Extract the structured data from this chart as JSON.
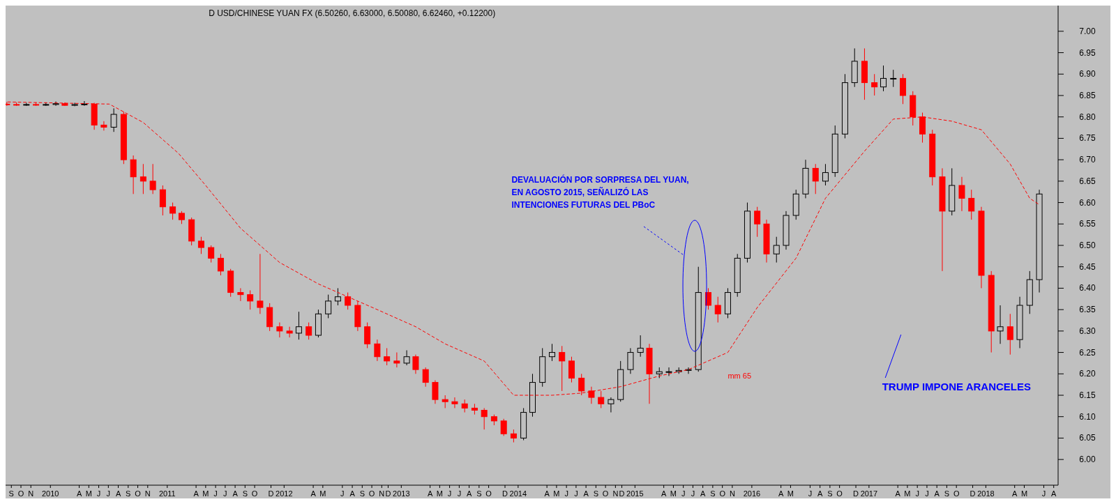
{
  "chart_data": {
    "type": "candlestick",
    "title": "D USD/CHINESE YUAN FX (6.50260, 6.63000, 6.50080, 6.62460, +0.12200)",
    "x": [
      "2009-09",
      "2009-10",
      "2009-11",
      "2009-12",
      "2010-01",
      "2010-02",
      "2010-03",
      "2010-04",
      "2010-05",
      "2010-06",
      "2010-07",
      "2010-08",
      "2010-09",
      "2010-10",
      "2010-11",
      "2010-12",
      "2011-01",
      "2011-02",
      "2011-03",
      "2011-04",
      "2011-05",
      "2011-06",
      "2011-07",
      "2011-08",
      "2011-09",
      "2011-10",
      "2011-11",
      "2011-12",
      "2012-01",
      "2012-02",
      "2012-03",
      "2012-04",
      "2012-05",
      "2012-06",
      "2012-07",
      "2012-08",
      "2012-09",
      "2012-10",
      "2012-11",
      "2012-12",
      "2013-01",
      "2013-02",
      "2013-03",
      "2013-04",
      "2013-05",
      "2013-06",
      "2013-07",
      "2013-08",
      "2013-09",
      "2013-10",
      "2013-11",
      "2013-12",
      "2014-01",
      "2014-02",
      "2014-03",
      "2014-04",
      "2014-05",
      "2014-06",
      "2014-07",
      "2014-08",
      "2014-09",
      "2014-10",
      "2014-11",
      "2014-12",
      "2015-01",
      "2015-02",
      "2015-03",
      "2015-04",
      "2015-05",
      "2015-06",
      "2015-07",
      "2015-08",
      "2015-09",
      "2015-10",
      "2015-11",
      "2015-12",
      "2016-01",
      "2016-02",
      "2016-03",
      "2016-04",
      "2016-05",
      "2016-06",
      "2016-07",
      "2016-08",
      "2016-09",
      "2016-10",
      "2016-11",
      "2016-12",
      "2017-01",
      "2017-02",
      "2017-03",
      "2017-04",
      "2017-05",
      "2017-06",
      "2017-07",
      "2017-08",
      "2017-09",
      "2017-10",
      "2017-11",
      "2017-12",
      "2018-01",
      "2018-02",
      "2018-03",
      "2018-04",
      "2018-05",
      "2018-06",
      "2018-07"
    ],
    "ohlc": [
      [
        6.83,
        6.835,
        6.826,
        6.829
      ],
      [
        6.829,
        6.834,
        6.826,
        6.828
      ],
      [
        6.828,
        6.833,
        6.826,
        6.829
      ],
      [
        6.829,
        6.834,
        6.826,
        6.828
      ],
      [
        6.828,
        6.834,
        6.826,
        6.829
      ],
      [
        6.829,
        6.836,
        6.826,
        6.831
      ],
      [
        6.831,
        6.834,
        6.826,
        6.827
      ],
      [
        6.827,
        6.833,
        6.825,
        6.829
      ],
      [
        6.829,
        6.837,
        6.826,
        6.83
      ],
      [
        6.83,
        6.833,
        6.77,
        6.781
      ],
      [
        6.781,
        6.79,
        6.768,
        6.776
      ],
      [
        6.776,
        6.82,
        6.765,
        6.806
      ],
      [
        6.806,
        6.812,
        6.69,
        6.7
      ],
      [
        6.7,
        6.71,
        6.62,
        6.66
      ],
      [
        6.66,
        6.69,
        6.62,
        6.65
      ],
      [
        6.65,
        6.69,
        6.62,
        6.63
      ],
      [
        6.63,
        6.64,
        6.57,
        6.59
      ],
      [
        6.59,
        6.6,
        6.56,
        6.575
      ],
      [
        6.575,
        6.58,
        6.55,
        6.56
      ],
      [
        6.56,
        6.565,
        6.5,
        6.51
      ],
      [
        6.51,
        6.52,
        6.48,
        6.495
      ],
      [
        6.495,
        6.5,
        6.46,
        6.47
      ],
      [
        6.47,
        6.48,
        6.43,
        6.44
      ],
      [
        6.44,
        6.445,
        6.38,
        6.39
      ],
      [
        6.39,
        6.4,
        6.37,
        6.385
      ],
      [
        6.385,
        6.395,
        6.35,
        6.37
      ],
      [
        6.37,
        6.48,
        6.34,
        6.355
      ],
      [
        6.355,
        6.365,
        6.3,
        6.31
      ],
      [
        6.31,
        6.32,
        6.285,
        6.3
      ],
      [
        6.3,
        6.31,
        6.285,
        6.295
      ],
      [
        6.295,
        6.345,
        6.28,
        6.31
      ],
      [
        6.31,
        6.32,
        6.28,
        6.29
      ],
      [
        6.29,
        6.35,
        6.285,
        6.34
      ],
      [
        6.34,
        6.385,
        6.33,
        6.37
      ],
      [
        6.37,
        6.4,
        6.36,
        6.38
      ],
      [
        6.38,
        6.39,
        6.35,
        6.36
      ],
      [
        6.36,
        6.37,
        6.3,
        6.31
      ],
      [
        6.31,
        6.32,
        6.26,
        6.27
      ],
      [
        6.27,
        6.28,
        6.23,
        6.24
      ],
      [
        6.24,
        6.26,
        6.22,
        6.23
      ],
      [
        6.23,
        6.25,
        6.215,
        6.225
      ],
      [
        6.225,
        6.255,
        6.22,
        6.24
      ],
      [
        6.24,
        6.245,
        6.2,
        6.21
      ],
      [
        6.21,
        6.215,
        6.17,
        6.18
      ],
      [
        6.18,
        6.185,
        6.13,
        6.14
      ],
      [
        6.14,
        6.15,
        6.12,
        6.135
      ],
      [
        6.135,
        6.145,
        6.12,
        6.13
      ],
      [
        6.13,
        6.14,
        6.11,
        6.12
      ],
      [
        6.12,
        6.13,
        6.105,
        6.115
      ],
      [
        6.115,
        6.12,
        6.07,
        6.1
      ],
      [
        6.1,
        6.105,
        6.08,
        6.09
      ],
      [
        6.09,
        6.095,
        6.055,
        6.06
      ],
      [
        6.06,
        6.07,
        6.04,
        6.05
      ],
      [
        6.05,
        6.12,
        6.045,
        6.11
      ],
      [
        6.11,
        6.2,
        6.1,
        6.18
      ],
      [
        6.18,
        6.26,
        6.17,
        6.24
      ],
      [
        6.24,
        6.27,
        6.23,
        6.25
      ],
      [
        6.25,
        6.265,
        6.16,
        6.23
      ],
      [
        6.23,
        6.24,
        6.18,
        6.19
      ],
      [
        6.19,
        6.2,
        6.15,
        6.16
      ],
      [
        6.16,
        6.17,
        6.13,
        6.145
      ],
      [
        6.145,
        6.16,
        6.12,
        6.13
      ],
      [
        6.13,
        6.145,
        6.11,
        6.14
      ],
      [
        6.14,
        6.23,
        6.135,
        6.21
      ],
      [
        6.21,
        6.26,
        6.2,
        6.25
      ],
      [
        6.25,
        6.29,
        6.24,
        6.26
      ],
      [
        6.26,
        6.27,
        6.13,
        6.2
      ],
      [
        6.2,
        6.215,
        6.19,
        6.205
      ],
      [
        6.205,
        6.215,
        6.195,
        6.205
      ],
      [
        6.205,
        6.215,
        6.2,
        6.208
      ],
      [
        6.208,
        6.215,
        6.2,
        6.21
      ],
      [
        6.21,
        6.45,
        6.205,
        6.39
      ],
      [
        6.39,
        6.4,
        6.35,
        6.36
      ],
      [
        6.36,
        6.38,
        6.32,
        6.34
      ],
      [
        6.34,
        6.4,
        6.33,
        6.39
      ],
      [
        6.39,
        6.48,
        6.38,
        6.47
      ],
      [
        6.47,
        6.6,
        6.46,
        6.58
      ],
      [
        6.58,
        6.59,
        6.52,
        6.55
      ],
      [
        6.55,
        6.56,
        6.46,
        6.48
      ],
      [
        6.48,
        6.52,
        6.46,
        6.5
      ],
      [
        6.5,
        6.58,
        6.49,
        6.57
      ],
      [
        6.57,
        6.63,
        6.56,
        6.62
      ],
      [
        6.62,
        6.7,
        6.61,
        6.68
      ],
      [
        6.68,
        6.69,
        6.62,
        6.65
      ],
      [
        6.65,
        6.69,
        6.64,
        6.67
      ],
      [
        6.67,
        6.78,
        6.66,
        6.76
      ],
      [
        6.76,
        6.9,
        6.75,
        6.88
      ],
      [
        6.88,
        6.96,
        6.87,
        6.93
      ],
      [
        6.93,
        6.96,
        6.84,
        6.88
      ],
      [
        6.88,
        6.9,
        6.85,
        6.87
      ],
      [
        6.87,
        6.92,
        6.86,
        6.89
      ],
      [
        6.89,
        6.91,
        6.87,
        6.89
      ],
      [
        6.89,
        6.9,
        6.83,
        6.85
      ],
      [
        6.85,
        6.86,
        6.78,
        6.8
      ],
      [
        6.8,
        6.81,
        6.74,
        6.76
      ],
      [
        6.76,
        6.77,
        6.64,
        6.66
      ],
      [
        6.66,
        6.68,
        6.44,
        6.58
      ],
      [
        6.58,
        6.68,
        6.57,
        6.64
      ],
      [
        6.64,
        6.66,
        6.58,
        6.61
      ],
      [
        6.61,
        6.63,
        6.56,
        6.58
      ],
      [
        6.58,
        6.59,
        6.4,
        6.43
      ],
      [
        6.43,
        6.44,
        6.25,
        6.3
      ],
      [
        6.3,
        6.36,
        6.27,
        6.31
      ],
      [
        6.31,
        6.34,
        6.245,
        6.28
      ],
      [
        6.28,
        6.38,
        6.26,
        6.36
      ],
      [
        6.36,
        6.44,
        6.34,
        6.42
      ],
      [
        6.42,
        6.63,
        6.39,
        6.62
      ]
    ],
    "series": [
      {
        "type": "line",
        "color": "#ff0000",
        "line_style": "dashed",
        "x": [
          "2009-09-01",
          "2010-07-18",
          "2010-11-01",
          "2011-02-19",
          "2011-05-15",
          "2011-09-01",
          "2012-01-01",
          "2012-05-01",
          "2012-08-01",
          "2012-11-01",
          "2013-03-01",
          "2013-06-01",
          "2013-10-01",
          "2014-01-01",
          "2014-05-01",
          "2014-08-01",
          "2014-12-01",
          "2015-04-01",
          "2015-07-01",
          "2015-11-01",
          "2016-02-01",
          "2016-06-01",
          "2016-09-01",
          "2017-01-01",
          "2017-04-01",
          "2017-07-01",
          "2017-10-01",
          "2018-01-01",
          "2018-04-01",
          "2018-06-01",
          "2018-07-01"
        ],
        "values": [
          6.835,
          6.83,
          6.787,
          6.715,
          6.64,
          6.54,
          6.46,
          6.41,
          6.38,
          6.35,
          6.31,
          6.27,
          6.23,
          6.15,
          6.15,
          6.155,
          6.17,
          6.195,
          6.21,
          6.25,
          6.355,
          6.47,
          6.61,
          6.72,
          6.795,
          6.8,
          6.79,
          6.77,
          6.69,
          6.61,
          6.595
        ]
      }
    ],
    "xlim": [
      "2009-08-28",
      "2018-08-20"
    ],
    "ylim": [
      5.94,
      7.06
    ],
    "yticks": [
      {
        "value": 6.0,
        "label": "6.00"
      },
      {
        "value": 6.05,
        "label": "6.05"
      },
      {
        "value": 6.1,
        "label": "6.10"
      },
      {
        "value": 6.15,
        "label": "6.15"
      },
      {
        "value": 6.2,
        "label": "6.20"
      },
      {
        "value": 6.25,
        "label": "6.25"
      },
      {
        "value": 6.3,
        "label": "6.30"
      },
      {
        "value": 6.35,
        "label": "6.35"
      },
      {
        "value": 6.4,
        "label": "6.40"
      },
      {
        "value": 6.45,
        "label": "6.45"
      },
      {
        "value": 6.5,
        "label": "6.50"
      },
      {
        "value": 6.55,
        "label": "6.55"
      },
      {
        "value": 6.6,
        "label": "6.60"
      },
      {
        "value": 6.65,
        "label": "6.65"
      },
      {
        "value": 6.7,
        "label": "6.70"
      },
      {
        "value": 6.75,
        "label": "6.75"
      },
      {
        "value": 6.8,
        "label": "6.80"
      },
      {
        "value": 6.85,
        "label": "6.85"
      },
      {
        "value": 6.9,
        "label": "6.90"
      },
      {
        "value": 6.95,
        "label": "6.95"
      },
      {
        "value": 7.0,
        "label": "7.00"
      }
    ],
    "xticks": [
      {
        "value": "2009-09-15",
        "label": "S"
      },
      {
        "value": "2009-10-15",
        "label": "O"
      },
      {
        "value": "2009-11-15",
        "label": "N"
      },
      {
        "value": "2010-01-15",
        "label": "2010"
      },
      {
        "value": "2010-04-15",
        "label": "A"
      },
      {
        "value": "2010-05-15",
        "label": "M"
      },
      {
        "value": "2010-06-15",
        "label": "J"
      },
      {
        "value": "2010-07-15",
        "label": "J"
      },
      {
        "value": "2010-08-15",
        "label": "A"
      },
      {
        "value": "2010-09-15",
        "label": "S"
      },
      {
        "value": "2010-10-15",
        "label": "O"
      },
      {
        "value": "2010-11-15",
        "label": "N"
      },
      {
        "value": "2011-01-15",
        "label": "2011"
      },
      {
        "value": "2011-04-15",
        "label": "A"
      },
      {
        "value": "2011-05-15",
        "label": "M"
      },
      {
        "value": "2011-06-15",
        "label": "J"
      },
      {
        "value": "2011-07-15",
        "label": "J"
      },
      {
        "value": "2011-08-15",
        "label": "A"
      },
      {
        "value": "2011-09-15",
        "label": "S"
      },
      {
        "value": "2011-10-15",
        "label": "O"
      },
      {
        "value": "2011-12-05",
        "label": "D"
      },
      {
        "value": "2012-01-15",
        "label": "2012"
      },
      {
        "value": "2012-04-15",
        "label": "A"
      },
      {
        "value": "2012-05-15",
        "label": "M"
      },
      {
        "value": "2012-07-15",
        "label": "J"
      },
      {
        "value": "2012-08-15",
        "label": "A"
      },
      {
        "value": "2012-09-15",
        "label": "S"
      },
      {
        "value": "2012-10-15",
        "label": "O"
      },
      {
        "value": "2012-11-15",
        "label": "N"
      },
      {
        "value": "2012-12-05",
        "label": "D"
      },
      {
        "value": "2013-01-15",
        "label": "2013"
      },
      {
        "value": "2013-04-15",
        "label": "A"
      },
      {
        "value": "2013-05-15",
        "label": "M"
      },
      {
        "value": "2013-06-15",
        "label": "J"
      },
      {
        "value": "2013-07-15",
        "label": "J"
      },
      {
        "value": "2013-08-15",
        "label": "A"
      },
      {
        "value": "2013-09-15",
        "label": "S"
      },
      {
        "value": "2013-10-15",
        "label": "O"
      },
      {
        "value": "2013-12-05",
        "label": "D"
      },
      {
        "value": "2014-01-15",
        "label": "2014"
      },
      {
        "value": "2014-04-15",
        "label": "A"
      },
      {
        "value": "2014-05-15",
        "label": "M"
      },
      {
        "value": "2014-06-15",
        "label": "J"
      },
      {
        "value": "2014-07-15",
        "label": "J"
      },
      {
        "value": "2014-08-15",
        "label": "A"
      },
      {
        "value": "2014-09-15",
        "label": "S"
      },
      {
        "value": "2014-10-15",
        "label": "O"
      },
      {
        "value": "2014-11-15",
        "label": "N"
      },
      {
        "value": "2014-12-05",
        "label": "D"
      },
      {
        "value": "2015-01-15",
        "label": "2015"
      },
      {
        "value": "2015-04-15",
        "label": "A"
      },
      {
        "value": "2015-05-15",
        "label": "M"
      },
      {
        "value": "2015-06-15",
        "label": "J"
      },
      {
        "value": "2015-07-15",
        "label": "J"
      },
      {
        "value": "2015-08-15",
        "label": "A"
      },
      {
        "value": "2015-09-15",
        "label": "S"
      },
      {
        "value": "2015-10-15",
        "label": "O"
      },
      {
        "value": "2015-11-15",
        "label": "N"
      },
      {
        "value": "2016-01-15",
        "label": "2016"
      },
      {
        "value": "2016-04-15",
        "label": "A"
      },
      {
        "value": "2016-05-15",
        "label": "M"
      },
      {
        "value": "2016-07-15",
        "label": "J"
      },
      {
        "value": "2016-08-15",
        "label": "A"
      },
      {
        "value": "2016-09-15",
        "label": "S"
      },
      {
        "value": "2016-10-15",
        "label": "O"
      },
      {
        "value": "2016-12-05",
        "label": "D"
      },
      {
        "value": "2017-01-15",
        "label": "2017"
      },
      {
        "value": "2017-04-15",
        "label": "A"
      },
      {
        "value": "2017-05-15",
        "label": "M"
      },
      {
        "value": "2017-06-15",
        "label": "J"
      },
      {
        "value": "2017-07-15",
        "label": "J"
      },
      {
        "value": "2017-08-15",
        "label": "A"
      },
      {
        "value": "2017-09-15",
        "label": "S"
      },
      {
        "value": "2017-10-15",
        "label": "O"
      },
      {
        "value": "2017-12-05",
        "label": "D"
      },
      {
        "value": "2018-01-15",
        "label": "2018"
      },
      {
        "value": "2018-04-15",
        "label": "A"
      },
      {
        "value": "2018-05-15",
        "label": "M"
      },
      {
        "value": "2018-07-15",
        "label": "J"
      },
      {
        "value": "2018-08-15",
        "label": "A"
      }
    ],
    "annotations": [
      "DEVALUACIÓN POR SORPRESA DEL YUAN,\nEN AGOSTO 2015, SEÑALIZÓ  LAS\nINTENCIONES FUTURAS DEL PBoC",
      "TRUMP IMPONE ARANCELES",
      "mm 65"
    ]
  }
}
